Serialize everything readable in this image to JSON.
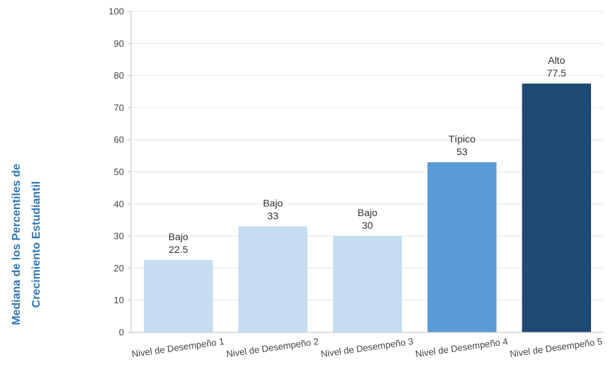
{
  "chart_data": {
    "type": "bar",
    "title": "",
    "xlabel": "",
    "ylabel": {
      "line1": "Mediana de los Percentiles de",
      "line2": "Crecimiento Estudiantil"
    },
    "ylim": [
      0,
      100
    ],
    "yticks": [
      0,
      10,
      20,
      30,
      40,
      50,
      60,
      70,
      80,
      90,
      100
    ],
    "grid": true,
    "categories": [
      "Nivel de Desempeño 1",
      "Nivel de Desempeño 2",
      "Nivel de Desempeño 3",
      "Nivel de Desempeño 4",
      "Nivel de Desempeño 5"
    ],
    "values": [
      22.5,
      33,
      30,
      53,
      77.5
    ],
    "value_labels": [
      "22.5",
      "33",
      "30",
      "53",
      "77.5"
    ],
    "category_labels": [
      "Bajo",
      "Bajo",
      "Bajo",
      "Típico",
      "Alto"
    ],
    "bar_colors": [
      "#c6dcf1",
      "#c6dcf1",
      "#c6dcf1",
      "#5b9bd5",
      "#1f4a73"
    ],
    "ylabel_color": "#2e75b6",
    "grid_color": "#e4e4e4",
    "axis_color": "#bfbfbf"
  }
}
